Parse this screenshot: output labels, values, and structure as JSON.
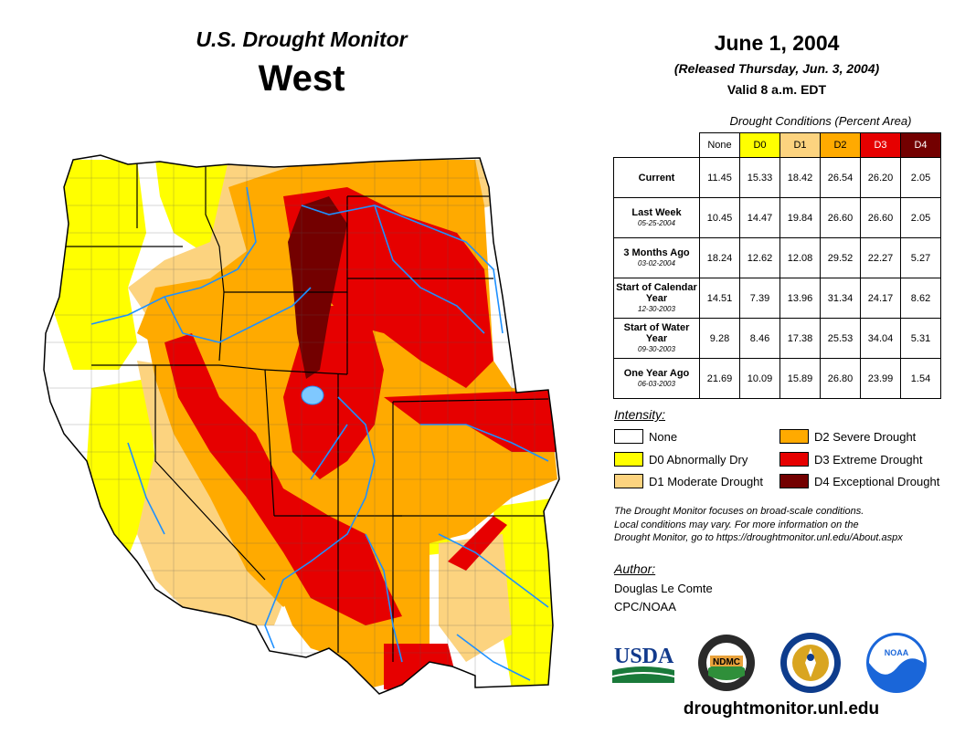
{
  "header": {
    "product": "U.S. Drought Monitor",
    "region": "West",
    "date": "June 1, 2004",
    "released": "(Released Thursday, Jun. 3, 2004)",
    "valid": "Valid 8 a.m. EDT"
  },
  "table": {
    "caption": "Drought Conditions (Percent Area)",
    "columns": [
      "None",
      "D0",
      "D1",
      "D2",
      "D3",
      "D4"
    ],
    "column_colors": [
      "#ffffff",
      "#ffff00",
      "#fcd37f",
      "#ffaa00",
      "#e60000",
      "#730000"
    ],
    "rows": [
      {
        "label": "Current",
        "date": "",
        "values": [
          "11.45",
          "15.33",
          "18.42",
          "26.54",
          "26.20",
          "2.05"
        ]
      },
      {
        "label": "Last Week",
        "date": "05-25-2004",
        "values": [
          "10.45",
          "14.47",
          "19.84",
          "26.60",
          "26.60",
          "2.05"
        ]
      },
      {
        "label": "3 Months Ago",
        "date": "03-02-2004",
        "values": [
          "18.24",
          "12.62",
          "12.08",
          "29.52",
          "22.27",
          "5.27"
        ]
      },
      {
        "label": "Start of Calendar Year",
        "date": "12-30-2003",
        "values": [
          "14.51",
          "7.39",
          "13.96",
          "31.34",
          "24.17",
          "8.62"
        ]
      },
      {
        "label": "Start of Water Year",
        "date": "09-30-2003",
        "values": [
          "9.28",
          "8.46",
          "17.38",
          "25.53",
          "34.04",
          "5.31"
        ]
      },
      {
        "label": "One Year Ago",
        "date": "06-03-2003",
        "values": [
          "21.69",
          "10.09",
          "15.89",
          "26.80",
          "23.99",
          "1.54"
        ]
      }
    ]
  },
  "legend": {
    "title": "Intensity:",
    "items": [
      {
        "label": "None",
        "color": "#ffffff"
      },
      {
        "label": "D0 Abnormally Dry",
        "color": "#ffff00"
      },
      {
        "label": "D1 Moderate Drought",
        "color": "#fcd37f"
      },
      {
        "label": "D2 Severe Drought",
        "color": "#ffaa00"
      },
      {
        "label": "D3 Extreme Drought",
        "color": "#e60000"
      },
      {
        "label": "D4 Exceptional Drought",
        "color": "#730000"
      }
    ]
  },
  "note": {
    "line1": "The Drought Monitor focuses on broad-scale conditions.",
    "line2": "Local conditions may vary. For more information on the",
    "line3": "Drought Monitor, go to https://droughtmonitor.unl.edu/About.aspx"
  },
  "author": {
    "title": "Author:",
    "name": "Douglas Le Comte",
    "org": "CPC/NOAA"
  },
  "logos": {
    "usda": "USDA",
    "ndmc": "NDMC",
    "noaa": "NOAA"
  },
  "site": "droughtmonitor.unl.edu",
  "colors": {
    "water": "#1e90ff",
    "lake": "#7fc8ff"
  }
}
